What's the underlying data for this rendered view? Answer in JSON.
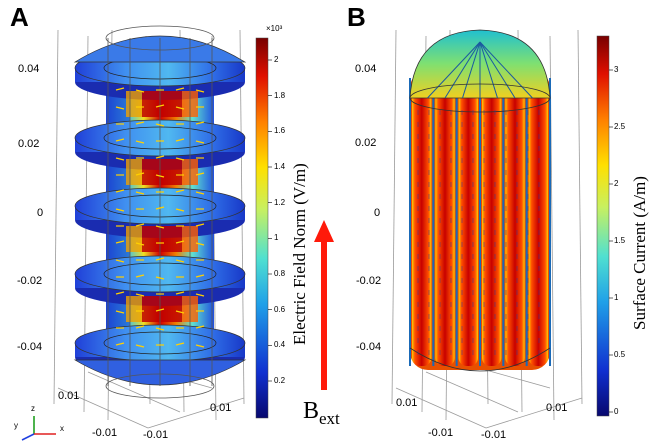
{
  "panels": [
    {
      "label": "A",
      "colorbar": {
        "title": "Electric Field Norm (V/m)",
        "multiplier": "×10³",
        "ticks": [
          "2",
          "1.8",
          "1.6",
          "1.4",
          "1.2",
          "1",
          "0.8",
          "0.6",
          "0.4",
          "0.2"
        ]
      },
      "z_ticks": [
        "0.04",
        "0.02",
        "0",
        "-0.02",
        "-0.04"
      ],
      "x_ticks": [
        "0.01",
        "-0.01"
      ],
      "y_ticks": [
        "0.01",
        "-0.01"
      ]
    },
    {
      "label": "B",
      "colorbar": {
        "title": "Surface Current (A/m)",
        "ticks": [
          "3",
          "2.5",
          "2",
          "1.5",
          "1",
          "0.5",
          "0"
        ]
      },
      "z_ticks": [
        "0.04",
        "0.02",
        "0",
        "-0.02",
        "-0.04"
      ],
      "x_ticks": [
        "0.01",
        "-0.01"
      ],
      "y_ticks": [
        "0.01",
        "-0.01"
      ]
    }
  ],
  "bext": {
    "main": "B",
    "sub": "ext"
  },
  "triad": {
    "x": "x",
    "y": "y",
    "z": "z"
  },
  "colors": {
    "dark_red": "#7a0000",
    "red": "#e01000",
    "orange": "#ff8000",
    "yellow": "#ffe800",
    "green": "#80e080",
    "cyan": "#40d0e0",
    "blue": "#2050e0",
    "navy": "#0a0a80",
    "arrow_red": "#ff1a0a"
  }
}
